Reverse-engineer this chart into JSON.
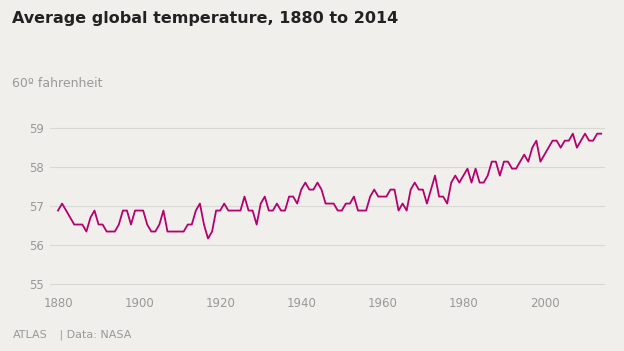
{
  "title": "Average global temperature, 1880 to 2014",
  "ylabel": "60º fahrenheit",
  "line_color": "#b5006e",
  "bg_color": "#f0efeb",
  "grid_color": "#d8d8d4",
  "text_color": "#999999",
  "title_color": "#222222",
  "footer_left": "ATLAS",
  "footer_sep": " | ",
  "footer_right": "Data: NASA",
  "xlim": [
    1878,
    2015
  ],
  "ylim": [
    54.8,
    59.5
  ],
  "yticks": [
    55,
    56,
    57,
    58,
    59
  ],
  "xticks": [
    1880,
    1900,
    1920,
    1940,
    1960,
    1980,
    2000
  ],
  "years": [
    1880,
    1881,
    1882,
    1883,
    1884,
    1885,
    1886,
    1887,
    1888,
    1889,
    1890,
    1891,
    1892,
    1893,
    1894,
    1895,
    1896,
    1897,
    1898,
    1899,
    1900,
    1901,
    1902,
    1903,
    1904,
    1905,
    1906,
    1907,
    1908,
    1909,
    1910,
    1911,
    1912,
    1913,
    1914,
    1915,
    1916,
    1917,
    1918,
    1919,
    1920,
    1921,
    1922,
    1923,
    1924,
    1925,
    1926,
    1927,
    1928,
    1929,
    1930,
    1931,
    1932,
    1933,
    1934,
    1935,
    1936,
    1937,
    1938,
    1939,
    1940,
    1941,
    1942,
    1943,
    1944,
    1945,
    1946,
    1947,
    1948,
    1949,
    1950,
    1951,
    1952,
    1953,
    1954,
    1955,
    1956,
    1957,
    1958,
    1959,
    1960,
    1961,
    1962,
    1963,
    1964,
    1965,
    1966,
    1967,
    1968,
    1969,
    1970,
    1971,
    1972,
    1973,
    1974,
    1975,
    1976,
    1977,
    1978,
    1979,
    1980,
    1981,
    1982,
    1983,
    1984,
    1985,
    1986,
    1987,
    1988,
    1989,
    1990,
    1991,
    1992,
    1993,
    1994,
    1995,
    1996,
    1997,
    1998,
    1999,
    2000,
    2001,
    2002,
    2003,
    2004,
    2005,
    2006,
    2007,
    2008,
    2009,
    2010,
    2011,
    2012,
    2013,
    2014
  ],
  "temps_f": [
    56.88,
    57.06,
    56.88,
    56.7,
    56.52,
    56.52,
    56.52,
    56.34,
    56.7,
    56.88,
    56.52,
    56.52,
    56.34,
    56.34,
    56.34,
    56.52,
    56.88,
    56.88,
    56.52,
    56.88,
    56.88,
    56.88,
    56.52,
    56.34,
    56.34,
    56.52,
    56.88,
    56.34,
    56.34,
    56.34,
    56.34,
    56.34,
    56.52,
    56.52,
    56.88,
    57.06,
    56.52,
    56.16,
    56.34,
    56.88,
    56.88,
    57.06,
    56.88,
    56.88,
    56.88,
    56.88,
    57.24,
    56.88,
    56.88,
    56.52,
    57.06,
    57.24,
    56.88,
    56.88,
    57.06,
    56.88,
    56.88,
    57.24,
    57.24,
    57.06,
    57.42,
    57.6,
    57.42,
    57.42,
    57.6,
    57.42,
    57.06,
    57.06,
    57.06,
    56.88,
    56.88,
    57.06,
    57.06,
    57.24,
    56.88,
    56.88,
    56.88,
    57.24,
    57.42,
    57.24,
    57.24,
    57.24,
    57.42,
    57.42,
    56.88,
    57.06,
    56.88,
    57.42,
    57.6,
    57.42,
    57.42,
    57.06,
    57.42,
    57.78,
    57.24,
    57.24,
    57.06,
    57.6,
    57.78,
    57.6,
    57.78,
    57.96,
    57.6,
    57.96,
    57.6,
    57.6,
    57.78,
    58.14,
    58.14,
    57.78,
    58.14,
    58.14,
    57.96,
    57.96,
    58.14,
    58.32,
    58.14,
    58.5,
    58.68,
    58.14,
    58.32,
    58.5,
    58.68,
    58.68,
    58.5,
    58.68,
    58.68,
    58.86,
    58.5,
    58.68,
    58.86,
    58.68,
    58.68,
    58.86,
    58.86
  ]
}
